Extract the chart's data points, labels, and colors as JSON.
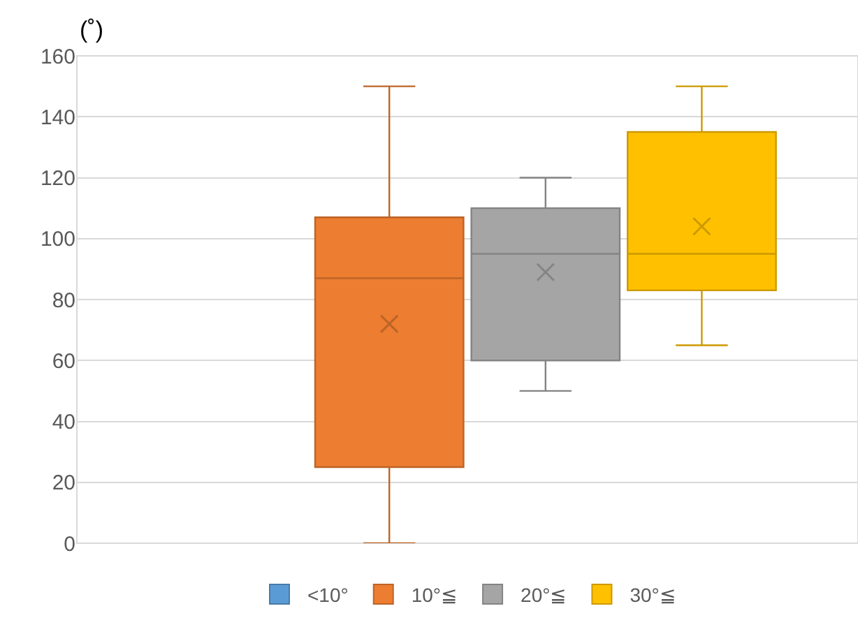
{
  "chart_data": {
    "type": "box",
    "ylabel": "(˚)",
    "categories": [
      null
    ],
    "ylim": [
      0,
      160
    ],
    "yticks": [
      0,
      20,
      40,
      60,
      80,
      100,
      120,
      140,
      160
    ],
    "grid": "y",
    "legend": "bottom",
    "marker": "cross",
    "series": [
      {
        "name": "<10°",
        "color": "#5b9bd5",
        "boxes": [
          null
        ]
      },
      {
        "name": "10°≦",
        "color": "#ed7d31",
        "boxes": [
          {
            "low": 0,
            "q1": 25,
            "median": 87,
            "q3": 107,
            "high": 150,
            "mean": 72
          }
        ]
      },
      {
        "name": "20°≦",
        "color": "#a5a5a5",
        "boxes": [
          {
            "low": 50,
            "q1": 60,
            "median": 95,
            "q3": 110,
            "high": 120,
            "mean": 89
          }
        ]
      },
      {
        "name": "30°≦",
        "color": "#ffc000",
        "boxes": [
          {
            "low": 65,
            "q1": 83,
            "median": 95,
            "q3": 135,
            "high": 150,
            "mean": 104
          }
        ]
      }
    ]
  }
}
